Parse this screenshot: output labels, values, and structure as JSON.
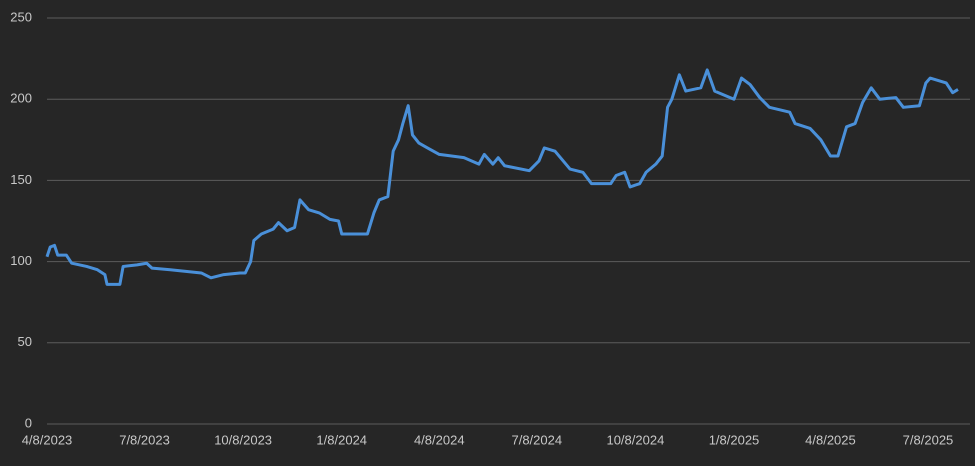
{
  "chart_data": {
    "type": "line",
    "color": "#4a90d9",
    "grid": true,
    "xlim": [
      "2023-04-08",
      "2025-08-05"
    ],
    "xticks": [
      {
        "value": "2023-04-08",
        "label": "4/8/2023"
      },
      {
        "value": "2023-07-08",
        "label": "7/8/2023"
      },
      {
        "value": "2023-10-08",
        "label": "10/8/2023"
      },
      {
        "value": "2024-01-08",
        "label": "1/8/2024"
      },
      {
        "value": "2024-04-08",
        "label": "4/8/2024"
      },
      {
        "value": "2024-07-08",
        "label": "7/8/2024"
      },
      {
        "value": "2024-10-08",
        "label": "10/8/2024"
      },
      {
        "value": "2025-01-08",
        "label": "1/8/2025"
      },
      {
        "value": "2025-04-08",
        "label": "4/8/2025"
      },
      {
        "value": "2025-07-08",
        "label": "7/8/2025"
      }
    ],
    "ylim": [
      0,
      250
    ],
    "yticks": [
      0,
      50,
      100,
      150,
      200,
      250
    ],
    "x": [
      "2023-04-08",
      "2023-04-11",
      "2023-04-15",
      "2023-04-18",
      "2023-04-26",
      "2023-05-01",
      "2023-05-15",
      "2023-05-25",
      "2023-06-01",
      "2023-06-03",
      "2023-06-15",
      "2023-06-18",
      "2023-07-01",
      "2023-07-10",
      "2023-07-15",
      "2023-08-01",
      "2023-08-30",
      "2023-09-08",
      "2023-09-20",
      "2023-10-05",
      "2023-10-10",
      "2023-10-15",
      "2023-10-18",
      "2023-10-25",
      "2023-11-05",
      "2023-11-10",
      "2023-11-18",
      "2023-11-25",
      "2023-11-30",
      "2023-12-08",
      "2023-12-18",
      "2023-12-28",
      "2024-01-05",
      "2024-01-08",
      "2024-02-01",
      "2024-02-07",
      "2024-02-12",
      "2024-02-20",
      "2024-02-25",
      "2024-03-01",
      "2024-03-05",
      "2024-03-10",
      "2024-03-14",
      "2024-03-20",
      "2024-03-28",
      "2024-04-08",
      "2024-05-01",
      "2024-05-15",
      "2024-05-20",
      "2024-05-28",
      "2024-06-02",
      "2024-06-08",
      "2024-07-01",
      "2024-07-10",
      "2024-07-15",
      "2024-07-25",
      "2024-08-08",
      "2024-08-20",
      "2024-08-28",
      "2024-09-15",
      "2024-09-20",
      "2024-09-28",
      "2024-10-03",
      "2024-10-12",
      "2024-10-18",
      "2024-10-27",
      "2024-11-02",
      "2024-11-07",
      "2024-11-11",
      "2024-11-18",
      "2024-11-24",
      "2024-12-08",
      "2024-12-14",
      "2024-12-21",
      "2025-01-08",
      "2025-01-15",
      "2025-01-23",
      "2025-02-01",
      "2025-02-10",
      "2025-03-01",
      "2025-03-06",
      "2025-03-20",
      "2025-03-30",
      "2025-04-08",
      "2025-04-15",
      "2025-04-23",
      "2025-05-01",
      "2025-05-08",
      "2025-05-16",
      "2025-05-24",
      "2025-06-08",
      "2025-06-15",
      "2025-06-30",
      "2025-07-06",
      "2025-07-10",
      "2025-07-25",
      "2025-07-31",
      "2025-08-05"
    ],
    "values": [
      103,
      109,
      110,
      104,
      104,
      99,
      97,
      95,
      92,
      86,
      86,
      97,
      98,
      99,
      96,
      95,
      93,
      90,
      92,
      93,
      93,
      100,
      113,
      117,
      120,
      124,
      119,
      121,
      138,
      132,
      130,
      126,
      125,
      117,
      117,
      130,
      138,
      140,
      168,
      175,
      185,
      196,
      178,
      173,
      170,
      166,
      164,
      160,
      166,
      160,
      164,
      159,
      156,
      162,
      170,
      168,
      157,
      155,
      148,
      148,
      153,
      155,
      146,
      148,
      155,
      160,
      165,
      195,
      200,
      215,
      205,
      207,
      218,
      205,
      200,
      213,
      209,
      201,
      195,
      192,
      185,
      182,
      175,
      165,
      165,
      183,
      185,
      198,
      207,
      200,
      201,
      195,
      196,
      210,
      213,
      210,
      204,
      206
    ]
  }
}
